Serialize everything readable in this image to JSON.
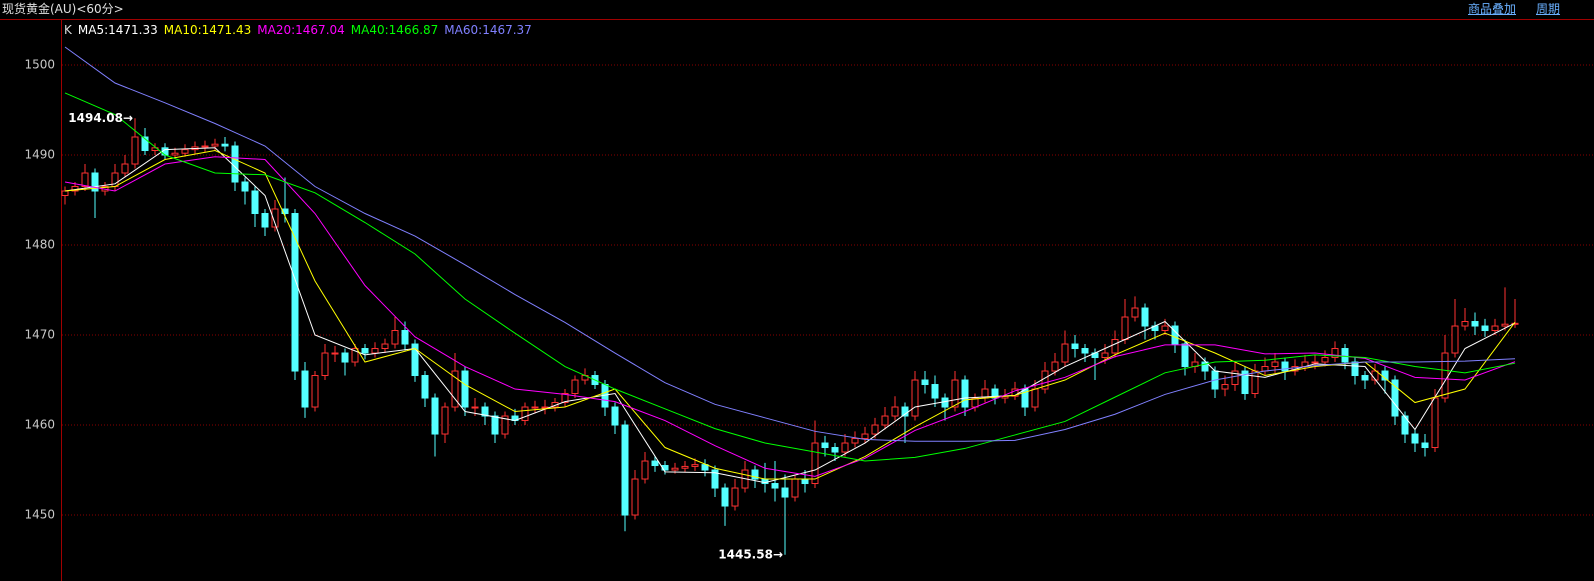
{
  "header": {
    "title": "现货黄金(AU)<60分>",
    "links": [
      "商品叠加",
      "周期"
    ]
  },
  "chart_data": {
    "type": "candlestick",
    "indicator": "K",
    "ylim": [
      1443.67,
      1505
    ],
    "yticks": [
      1450,
      1460,
      1470,
      1480,
      1490,
      1500
    ],
    "grid": true,
    "up_color": "#ff3232",
    "down_color": "#54ffff",
    "open": [
      1485.5,
      1486,
      1486.5,
      1488,
      1486,
      1486.5,
      1488,
      1489,
      1492,
      1490.5,
      1490.8,
      1490,
      1490.2,
      1490.6,
      1490.9,
      1491,
      1491.2,
      1491,
      1487,
      1486,
      1483.5,
      1482,
      1484,
      1483.5,
      1466,
      1462,
      1465.5,
      1468,
      1468,
      1467,
      1468.5,
      1468,
      1468.5,
      1469,
      1470.5,
      1469,
      1465.5,
      1463,
      1459,
      1462,
      1466,
      1462,
      1462,
      1461,
      1459,
      1461,
      1460.5,
      1462,
      1462,
      1462,
      1462.5,
      1463.5,
      1465,
      1465.5,
      1464.5,
      1462,
      1460,
      1450,
      1454,
      1456,
      1455.5,
      1455,
      1455.2,
      1455.4,
      1455.6,
      1455,
      1453,
      1451,
      1453,
      1455,
      1454,
      1453.5,
      1453,
      1452,
      1454,
      1453.5,
      1458,
      1457.5,
      1457,
      1458,
      1458.5,
      1459,
      1460,
      1461,
      1462,
      1461,
      1465,
      1464.5,
      1463,
      1462,
      1465,
      1462,
      1463,
      1464,
      1463,
      1463.2,
      1464,
      1462,
      1464,
      1466,
      1467,
      1469,
      1468.5,
      1468,
      1467.5,
      1468,
      1469.5,
      1472,
      1473,
      1471,
      1470.5,
      1471,
      1469,
      1466.5,
      1467,
      1466,
      1464,
      1464.5,
      1466,
      1463.5,
      1466,
      1466.5,
      1467,
      1466,
      1466.5,
      1467,
      1467,
      1467.5,
      1468.5,
      1467,
      1465.5,
      1465,
      1466,
      1465,
      1461,
      1459,
      1458,
      1457.5,
      1463,
      1468,
      1471,
      1471.5,
      1471,
      1470.5,
      1471,
      1471.2
    ],
    "high": [
      1486.5,
      1487,
      1489,
      1488.5,
      1487,
      1489,
      1490,
      1494.08,
      1493,
      1491.3,
      1491.3,
      1490.8,
      1491.2,
      1491.5,
      1491.6,
      1491.8,
      1492,
      1491.5,
      1487.5,
      1486.5,
      1484,
      1485,
      1487.5,
      1484,
      1467,
      1466,
      1469,
      1468.8,
      1468.5,
      1469,
      1469,
      1469.2,
      1469.6,
      1472,
      1471.5,
      1469.5,
      1466,
      1463.5,
      1462.5,
      1468,
      1466.5,
      1463,
      1462.5,
      1461.5,
      1461.5,
      1461.8,
      1462.5,
      1462.7,
      1462.8,
      1463,
      1464,
      1465.5,
      1466.3,
      1466,
      1465,
      1462.5,
      1460.5,
      1455,
      1457,
      1456.5,
      1456,
      1455.8,
      1456,
      1456.3,
      1456.2,
      1455.5,
      1453.5,
      1454,
      1456,
      1455.5,
      1455.8,
      1456,
      1454.5,
      1454.5,
      1455,
      1460.5,
      1458.8,
      1458,
      1459,
      1459.3,
      1459.8,
      1460.8,
      1462,
      1463.2,
      1462.5,
      1466,
      1466,
      1465.5,
      1463.5,
      1466,
      1465.5,
      1463.5,
      1465,
      1464.5,
      1464,
      1464.8,
      1464.5,
      1465,
      1467,
      1468,
      1470.5,
      1470,
      1469,
      1468.5,
      1469,
      1470.5,
      1474,
      1474.3,
      1473.5,
      1471.5,
      1471.8,
      1471.5,
      1469.5,
      1468,
      1467.5,
      1466.5,
      1465.5,
      1467,
      1466.5,
      1466.8,
      1467.5,
      1468,
      1467.5,
      1467.3,
      1467.8,
      1467.8,
      1468.3,
      1469.3,
      1469,
      1467.5,
      1466,
      1466.8,
      1466.5,
      1465.5,
      1461.5,
      1459.5,
      1459,
      1464,
      1470,
      1474,
      1473,
      1472.5,
      1471.8,
      1471.8,
      1475.3,
      1474
    ],
    "low": [
      1484.5,
      1485.5,
      1486,
      1483,
      1485.5,
      1486,
      1487.5,
      1488.5,
      1490,
      1490,
      1489.5,
      1489.6,
      1489.8,
      1490.1,
      1490.3,
      1490.5,
      1490.4,
      1486,
      1484.5,
      1482,
      1481,
      1481.5,
      1482.5,
      1465,
      1460.8,
      1461.5,
      1465,
      1467,
      1465.5,
      1466.5,
      1467.3,
      1467.5,
      1468,
      1468.5,
      1468.3,
      1464.8,
      1462,
      1456.5,
      1458,
      1461.5,
      1461,
      1461,
      1460,
      1458,
      1458.5,
      1460,
      1460,
      1461.3,
      1461.2,
      1461.5,
      1462,
      1463,
      1464.5,
      1464,
      1461,
      1459,
      1448.2,
      1449.5,
      1453.5,
      1454.8,
      1454.5,
      1454.6,
      1454.8,
      1454.9,
      1454.3,
      1452,
      1448.8,
      1450.5,
      1452.5,
      1453,
      1452.5,
      1451.5,
      1445.58,
      1451.5,
      1452.5,
      1453,
      1456.5,
      1456,
      1456.5,
      1457.5,
      1458,
      1458.5,
      1459.5,
      1460.5,
      1458,
      1460.5,
      1463.5,
      1462,
      1460.5,
      1461.5,
      1461,
      1461.5,
      1462.5,
      1462.3,
      1462.4,
      1462.8,
      1461,
      1461.5,
      1463.5,
      1465.5,
      1466.5,
      1467.5,
      1467,
      1465,
      1466.8,
      1467.5,
      1469,
      1471.5,
      1469.5,
      1469.5,
      1470,
      1468,
      1465.5,
      1465.8,
      1465,
      1463,
      1463.2,
      1463.8,
      1462.8,
      1463,
      1465.5,
      1465.8,
      1465,
      1465.5,
      1466,
      1466.2,
      1466.5,
      1467,
      1466.2,
      1464.5,
      1464,
      1464.5,
      1463.5,
      1460,
      1458,
      1457,
      1456.5,
      1457,
      1462.5,
      1467.5,
      1470.5,
      1470,
      1469.8,
      1470,
      1470.5,
      1470.8
    ],
    "close": [
      1486,
      1486.5,
      1488,
      1486,
      1486.5,
      1488,
      1489,
      1492,
      1490.5,
      1490.8,
      1490,
      1490.2,
      1490.6,
      1490.9,
      1491,
      1491.2,
      1491,
      1487,
      1486,
      1483.5,
      1482,
      1484,
      1483.5,
      1466,
      1462,
      1465.5,
      1468,
      1468,
      1467,
      1468.5,
      1468,
      1468.5,
      1469,
      1470.5,
      1469,
      1465.5,
      1463,
      1459,
      1462,
      1466,
      1462,
      1462,
      1461,
      1459,
      1461,
      1460.5,
      1462,
      1462,
      1462,
      1462.5,
      1463.5,
      1465,
      1465.5,
      1464.5,
      1462,
      1460,
      1450,
      1454,
      1456,
      1455.5,
      1455,
      1455.2,
      1455.4,
      1455.6,
      1455,
      1453,
      1451,
      1453,
      1455,
      1454,
      1453.5,
      1453,
      1452,
      1454,
      1453.5,
      1458,
      1457.5,
      1457,
      1458,
      1458.5,
      1459,
      1460,
      1461,
      1462,
      1461,
      1465,
      1464.5,
      1463,
      1462,
      1465,
      1462,
      1463,
      1464,
      1463,
      1463.2,
      1464,
      1462,
      1464,
      1466,
      1467,
      1469,
      1468.5,
      1468,
      1467.5,
      1468,
      1469.5,
      1472,
      1473,
      1471,
      1470.5,
      1471,
      1469,
      1466.5,
      1467,
      1466,
      1464,
      1464.5,
      1466,
      1463.5,
      1466,
      1466.5,
      1467,
      1466,
      1466.5,
      1467,
      1467,
      1467.5,
      1468.5,
      1467,
      1465.5,
      1465,
      1466,
      1465,
      1461,
      1459,
      1458,
      1457.5,
      1463,
      1468,
      1471,
      1471.5,
      1471,
      1470.5,
      1471,
      1471.2,
      1471.3
    ],
    "series": [
      {
        "name": "MA5",
        "color": "#ffffff",
        "x": [
          0,
          5,
          10,
          15,
          20,
          25,
          30,
          35,
          40,
          45,
          50,
          55,
          60,
          65,
          70,
          75,
          80,
          85,
          90,
          95,
          100,
          105,
          110,
          115,
          120,
          125,
          130,
          135,
          140,
          145
        ],
        "values": [
          1486,
          1486.8,
          1490.6,
          1490.8,
          1485.5,
          1470,
          1467.8,
          1468.5,
          1461.5,
          1460.5,
          1462.6,
          1463.5,
          1454.8,
          1454.7,
          1453.6,
          1455,
          1458,
          1462,
          1463,
          1463.3,
          1466.5,
          1469,
          1471.5,
          1466,
          1465.3,
          1466.8,
          1466.5,
          1459.5,
          1468.5,
          1471.33
        ]
      },
      {
        "name": "MA10",
        "color": "#ffff00",
        "x": [
          0,
          5,
          10,
          15,
          20,
          25,
          30,
          35,
          40,
          45,
          50,
          55,
          60,
          65,
          70,
          75,
          80,
          85,
          90,
          95,
          100,
          105,
          110,
          115,
          120,
          125,
          130,
          135,
          140,
          145
        ],
        "values": [
          1486,
          1486.5,
          1489.5,
          1490.5,
          1488,
          1476,
          1467,
          1468.5,
          1464.5,
          1461.5,
          1462,
          1464,
          1457.5,
          1455.2,
          1454,
          1454,
          1456.5,
          1459.8,
          1462.8,
          1463.3,
          1465,
          1467.8,
          1470.2,
          1468,
          1465.5,
          1466.5,
          1467,
          1462.5,
          1464,
          1471.43
        ]
      },
      {
        "name": "MA20",
        "color": "#ff00ff",
        "x": [
          0,
          5,
          10,
          15,
          20,
          25,
          30,
          35,
          40,
          45,
          50,
          55,
          60,
          65,
          70,
          75,
          80,
          85,
          90,
          95,
          100,
          105,
          110,
          115,
          120,
          125,
          130,
          135,
          140,
          145
        ],
        "values": [
          1487,
          1486,
          1489,
          1489.8,
          1489.5,
          1483.5,
          1475.5,
          1469.8,
          1466.5,
          1464,
          1463.4,
          1462.6,
          1460.5,
          1457.7,
          1455.2,
          1454.3,
          1456.3,
          1459.4,
          1461.5,
          1463.8,
          1465.3,
          1467.6,
          1468.9,
          1468.9,
          1467.9,
          1468,
          1467.4,
          1465.3,
          1465,
          1467.04
        ]
      },
      {
        "name": "MA40",
        "color": "#00ff00",
        "x": [
          0,
          5,
          10,
          15,
          20,
          25,
          30,
          35,
          40,
          45,
          50,
          55,
          60,
          65,
          70,
          75,
          80,
          85,
          90,
          95,
          100,
          105,
          110,
          115,
          120,
          125,
          130,
          135,
          140,
          145
        ],
        "values": [
          1496.9,
          1494.5,
          1490,
          1488,
          1487.8,
          1485.8,
          1482.5,
          1479,
          1474,
          1470.2,
          1466.5,
          1464,
          1461.8,
          1459.6,
          1458,
          1457,
          1456,
          1456.4,
          1457.4,
          1458.9,
          1460.4,
          1463.1,
          1465.8,
          1467,
          1467.2,
          1467.8,
          1467.5,
          1466.5,
          1465.8,
          1466.87
        ]
      },
      {
        "name": "MA60",
        "color": "#8080ff",
        "x": [
          0,
          5,
          10,
          15,
          20,
          25,
          30,
          35,
          40,
          45,
          50,
          55,
          60,
          65,
          70,
          75,
          80,
          85,
          90,
          95,
          100,
          105,
          110,
          115,
          120,
          125,
          130,
          135,
          140,
          145
        ],
        "values": [
          1502,
          1498,
          1495.8,
          1493.5,
          1491,
          1486.5,
          1483.5,
          1481,
          1477.8,
          1474.5,
          1471.4,
          1468,
          1464.7,
          1462.3,
          1460.8,
          1459.3,
          1458.4,
          1458.2,
          1458.2,
          1458.3,
          1459.5,
          1461.2,
          1463.4,
          1465,
          1466,
          1466.6,
          1467,
          1467,
          1467.1,
          1467.37
        ]
      }
    ],
    "annotations": [
      {
        "text": "1494.08→",
        "x": 7,
        "value": 1494.08
      },
      {
        "text": "1445.58→",
        "x": 72,
        "value": 1445.58
      }
    ]
  }
}
